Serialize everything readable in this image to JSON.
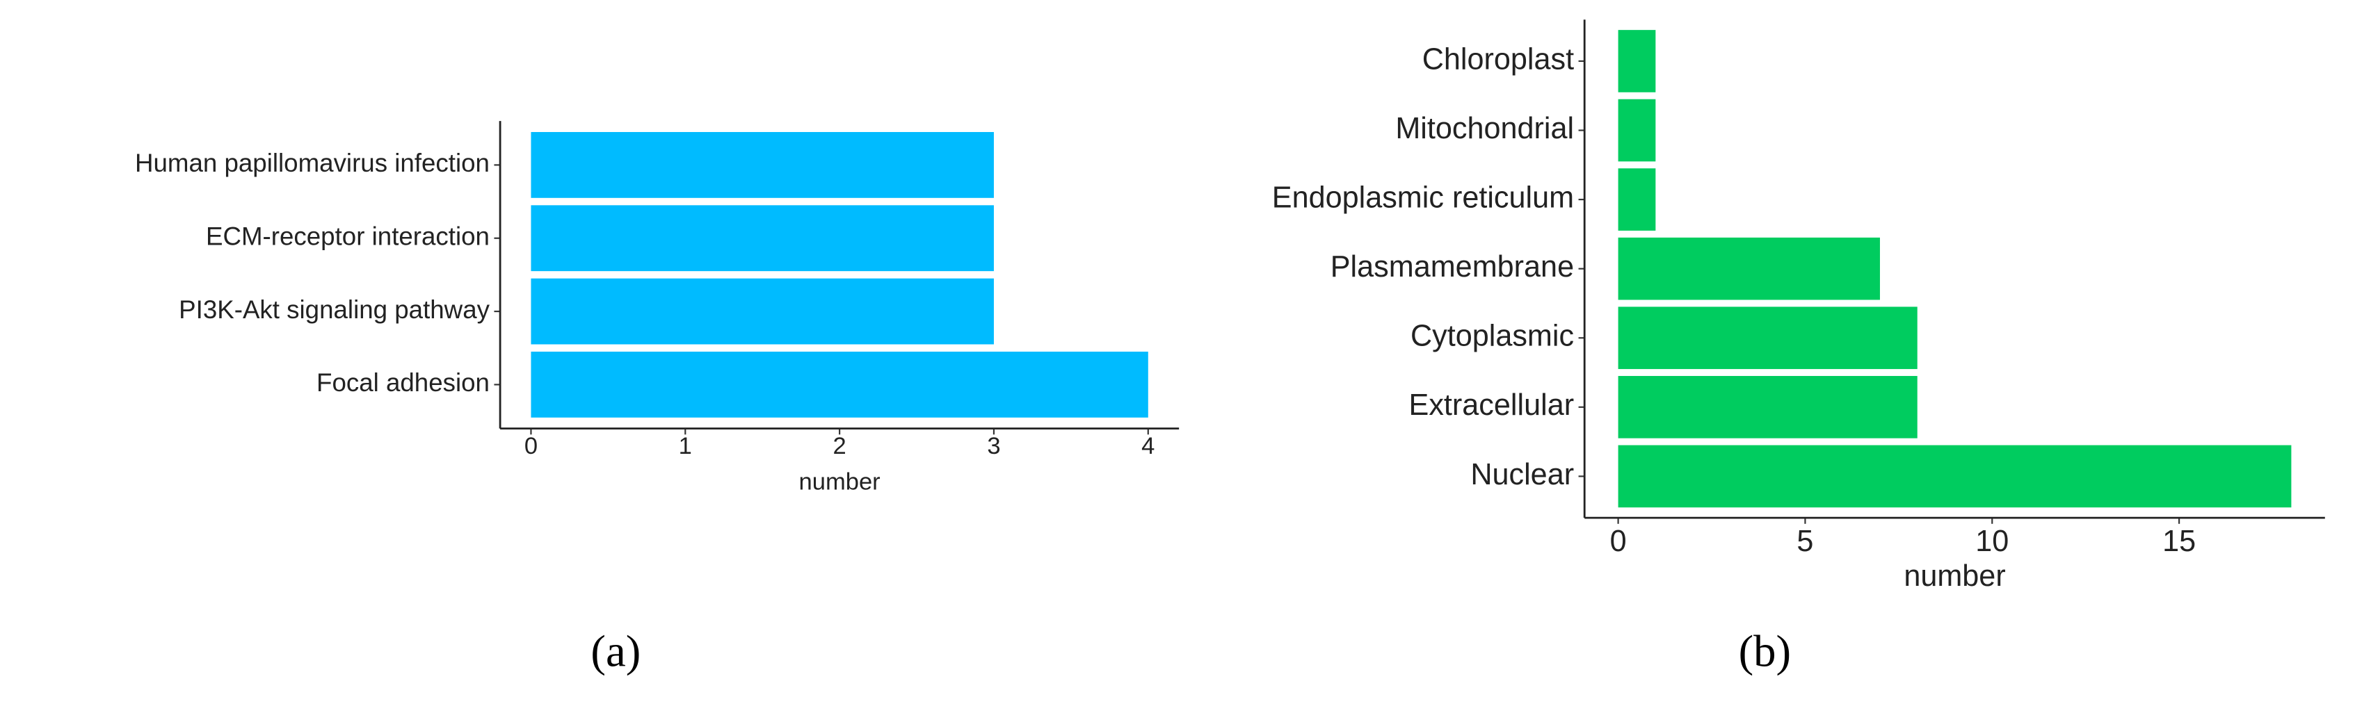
{
  "chart_data": [
    {
      "type": "bar",
      "orientation": "horizontal",
      "panel_label": "(a)",
      "categories": [
        "Human papillomavirus infection",
        "ECM-receptor interaction",
        "PI3K-Akt signaling pathway",
        "Focal adhesion"
      ],
      "values": [
        3,
        3,
        3,
        4
      ],
      "color": "#00bbff",
      "xlabel": "number",
      "xlim": [
        -0.2,
        4.2
      ],
      "xticks": [
        0,
        1,
        2,
        3,
        4
      ]
    },
    {
      "type": "bar",
      "orientation": "horizontal",
      "panel_label": "(b)",
      "categories": [
        "Chloroplast",
        "Mitochondrial",
        "Endoplasmic reticulum",
        "Plasmamembrane",
        "Cytoplasmic",
        "Extracellular",
        "Nuclear"
      ],
      "values": [
        1,
        1,
        1,
        7,
        8,
        8,
        18
      ],
      "color": "#00cc5f",
      "xlabel": "number",
      "xlim": [
        -0.9,
        18.9
      ],
      "xticks": [
        0,
        5,
        10,
        15
      ]
    }
  ]
}
